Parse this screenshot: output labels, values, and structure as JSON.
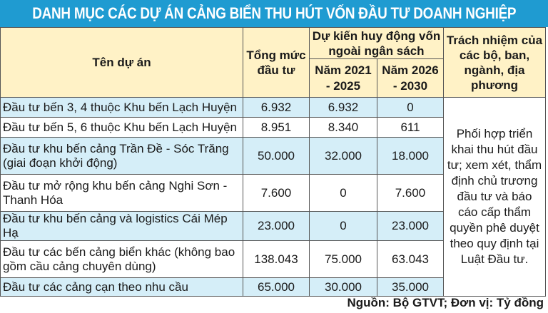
{
  "title": "DANH MỤC CÁC DỰ ÁN CẢNG BIỂN THU HÚT VỐN ĐẦU TƯ DOANH NGHIỆP",
  "headers": {
    "name": "Tên dự án",
    "total": "Tổng mức đầu tư",
    "mobilize": "Dự kiến huy động vốn ngoài ngân sách",
    "period1": "Năm 2021 - 2025",
    "period2": "Năm 2026 - 2030",
    "responsibility": "Trách nhiệm của các bộ, ban, ngành, địa phương"
  },
  "rows": [
    {
      "name": "Đầu tư bến 3, 4 thuộc Khu bến Lạch Huyện",
      "total": "6.932",
      "p1": "6.932",
      "p2": "0"
    },
    {
      "name": "Đầu tư bến 5, 6 thuộc Khu bến Lạch Huyện",
      "total": "8.951",
      "p1": "8.340",
      "p2": "611"
    },
    {
      "name": "Đầu tư khu bến cảng Trần Đề - Sóc Trăng (giai đoạn khởi động)",
      "total": "50.000",
      "p1": "32.000",
      "p2": "18.000"
    },
    {
      "name": "Đầu tư mở rộng khu bến cảng Nghi Sơn - Thanh Hóa",
      "total": "7.600",
      "p1": "0",
      "p2": "7.600"
    },
    {
      "name": "Đầu tư khu bến cảng và logistics Cái Mép Hạ",
      "total": "23.000",
      "p1": "0",
      "p2": "23.000"
    },
    {
      "name": "Đầu tư các bến cảng biển khác (không bao gồm cầu cảng chuyên dùng)",
      "total": "138.043",
      "p1": "75.000",
      "p2": "63.043"
    },
    {
      "name": "Đầu tư các cảng cạn theo nhu cầu",
      "total": "65.000",
      "p1": "30.000",
      "p2": "35.000"
    }
  ],
  "responsibility_text": "Phối hợp triển khai thu hút đầu tư; xem xét, thẩm định chủ trương đầu tư và báo cáo cấp thẩm quyền phê duyệt theo quy định tại Luật Đầu tư.",
  "source": "Nguồn: Bộ GTVT; Đơn vị: Tỷ đồng",
  "colors": {
    "banner": "#1f9bd1",
    "header_bg": "#fff2c6",
    "row_shade": "#d5eef8"
  }
}
